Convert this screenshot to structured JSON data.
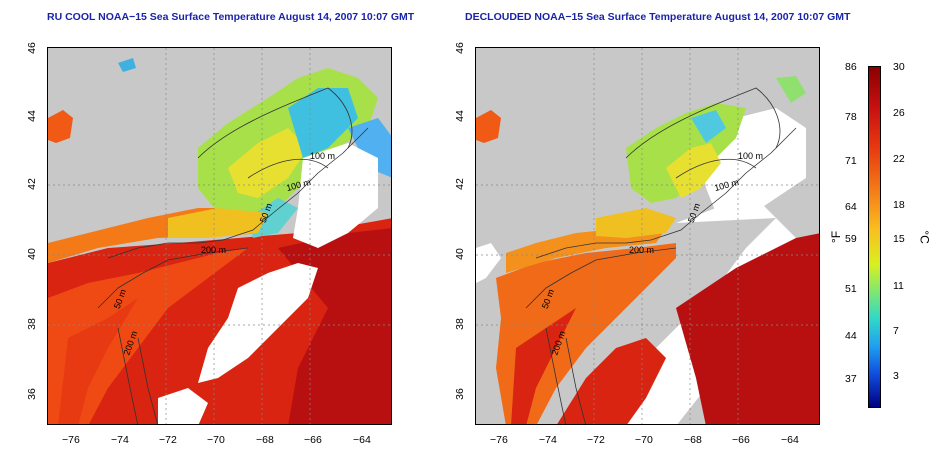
{
  "left_map": {
    "title": "RU COOL NOAA−15 Sea Surface Temperature August 14, 2007 10:07 GMT",
    "contour_labels": [
      "100 m",
      "100 m",
      "50 m",
      "200 m",
      "50 m",
      "200 m"
    ]
  },
  "right_map": {
    "title": "DECLOUDED NOAA−15 Sea Surface Temperature August 14, 2007 10:07 GMT",
    "contour_labels": [
      "100 m",
      "100 m",
      "50 m",
      "200 m",
      "50 m",
      "200 m"
    ]
  },
  "axes": {
    "y_ticks": [
      "46",
      "44",
      "42",
      "40",
      "38",
      "36"
    ],
    "x_ticks": [
      "−76",
      "−74",
      "−72",
      "−70",
      "−68",
      "−66",
      "−64"
    ]
  },
  "colorbar": {
    "fahrenheit_label": "°F",
    "celsius_label": "°C",
    "fahrenheit_ticks": [
      "86",
      "78",
      "71",
      "64",
      "59",
      "51",
      "44",
      "37"
    ],
    "celsius_ticks": [
      "30",
      "26",
      "22",
      "18",
      "15",
      "11",
      "7",
      "3"
    ]
  },
  "colors": {
    "land": "#c8c8c8",
    "cloud": "#ffffff",
    "warm": "#d81c10",
    "hot": "#a00808",
    "mid": "#f06a18",
    "cool": "#e8e030",
    "cold": "#40c0e0",
    "title": "#1a24a8"
  }
}
